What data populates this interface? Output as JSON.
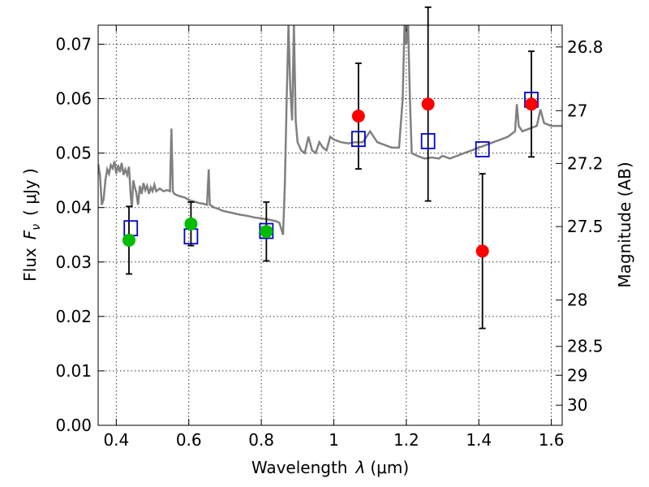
{
  "chart_data": {
    "type": "scatter",
    "xlabel_text": "Wavelength",
    "xlabel_symbol": "λ",
    "xlabel_unit": "(μm)",
    "ylabel_text": "Flux",
    "ylabel_symbol": "F",
    "ylabel_subscript": "ν",
    "ylabel_unit": "( μJy )",
    "y2label": "Magnitude (AB)",
    "xlim": [
      0.35,
      1.63
    ],
    "ylim": [
      0.0,
      0.0735
    ],
    "grid": true,
    "x_ticks": [
      {
        "value": 0.4,
        "label": "0.4"
      },
      {
        "value": 0.6,
        "label": "0.6"
      },
      {
        "value": 0.8,
        "label": "0.8"
      },
      {
        "value": 1.0,
        "label": "1"
      },
      {
        "value": 1.2,
        "label": "1.2"
      },
      {
        "value": 1.4,
        "label": "1.4"
      },
      {
        "value": 1.6,
        "label": "1.6"
      }
    ],
    "y_ticks": [
      {
        "value": 0.0,
        "label": "0.00"
      },
      {
        "value": 0.01,
        "label": "0.01"
      },
      {
        "value": 0.02,
        "label": "0.02"
      },
      {
        "value": 0.03,
        "label": "0.03"
      },
      {
        "value": 0.04,
        "label": "0.04"
      },
      {
        "value": 0.05,
        "label": "0.05"
      },
      {
        "value": 0.06,
        "label": "0.06"
      },
      {
        "value": 0.07,
        "label": "0.07"
      }
    ],
    "y2_ticks": [
      {
        "flux": 0.0695,
        "label": "26.8"
      },
      {
        "flux": 0.0578,
        "label": "27"
      },
      {
        "flux": 0.0481,
        "label": "27.2"
      },
      {
        "flux": 0.0365,
        "label": "27.5"
      },
      {
        "flux": 0.023,
        "label": "28"
      },
      {
        "flux": 0.0145,
        "label": "28.5"
      },
      {
        "flux": 0.0092,
        "label": "29"
      },
      {
        "flux": 0.0037,
        "label": "30"
      }
    ],
    "series": [
      {
        "kind": "spectrum",
        "color": "#808080",
        "points": [
          [
            0.35,
            0.048
          ],
          [
            0.355,
            0.046
          ],
          [
            0.36,
            0.0405
          ],
          [
            0.365,
            0.0415
          ],
          [
            0.37,
            0.045
          ],
          [
            0.375,
            0.047
          ],
          [
            0.38,
            0.0462
          ],
          [
            0.385,
            0.0478
          ],
          [
            0.39,
            0.0472
          ],
          [
            0.395,
            0.0485
          ],
          [
            0.4,
            0.0462
          ],
          [
            0.405,
            0.0478
          ],
          [
            0.41,
            0.0465
          ],
          [
            0.415,
            0.0482
          ],
          [
            0.42,
            0.046
          ],
          [
            0.425,
            0.047
          ],
          [
            0.43,
            0.046
          ],
          [
            0.435,
            0.0475
          ],
          [
            0.44,
            0.042
          ],
          [
            0.443,
            0.04
          ],
          [
            0.447,
            0.045
          ],
          [
            0.45,
            0.044
          ],
          [
            0.455,
            0.0428
          ],
          [
            0.46,
            0.0405
          ],
          [
            0.465,
            0.044
          ],
          [
            0.47,
            0.0425
          ],
          [
            0.475,
            0.0445
          ],
          [
            0.48,
            0.0432
          ],
          [
            0.485,
            0.044
          ],
          [
            0.49,
            0.0425
          ],
          [
            0.495,
            0.0437
          ],
          [
            0.5,
            0.043
          ],
          [
            0.505,
            0.0442
          ],
          [
            0.51,
            0.043
          ],
          [
            0.52,
            0.0435
          ],
          [
            0.53,
            0.043
          ],
          [
            0.54,
            0.0432
          ],
          [
            0.548,
            0.043
          ],
          [
            0.552,
            0.0545
          ],
          [
            0.556,
            0.043
          ],
          [
            0.56,
            0.0425
          ],
          [
            0.57,
            0.0422
          ],
          [
            0.58,
            0.042
          ],
          [
            0.59,
            0.0418
          ],
          [
            0.6,
            0.0414
          ],
          [
            0.61,
            0.0412
          ],
          [
            0.62,
            0.041
          ],
          [
            0.63,
            0.0408
          ],
          [
            0.64,
            0.0407
          ],
          [
            0.65,
            0.0405
          ],
          [
            0.655,
            0.047
          ],
          [
            0.658,
            0.0405
          ],
          [
            0.67,
            0.04
          ],
          [
            0.68,
            0.0398
          ],
          [
            0.69,
            0.0395
          ],
          [
            0.7,
            0.0393
          ],
          [
            0.72,
            0.039
          ],
          [
            0.74,
            0.0387
          ],
          [
            0.76,
            0.0385
          ],
          [
            0.78,
            0.0382
          ],
          [
            0.8,
            0.038
          ],
          [
            0.82,
            0.0378
          ],
          [
            0.84,
            0.0375
          ],
          [
            0.85,
            0.0372
          ],
          [
            0.86,
            0.035
          ],
          [
            0.865,
            0.044
          ],
          [
            0.87,
            0.06
          ],
          [
            0.875,
            0.0735
          ],
          [
            0.88,
            0.062
          ],
          [
            0.885,
            0.056
          ],
          [
            0.89,
            0.0735
          ],
          [
            0.895,
            0.056
          ],
          [
            0.9,
            0.052
          ],
          [
            0.91,
            0.0505
          ],
          [
            0.92,
            0.05
          ],
          [
            0.93,
            0.053
          ],
          [
            0.94,
            0.0505
          ],
          [
            0.95,
            0.05
          ],
          [
            0.96,
            0.052
          ],
          [
            0.97,
            0.051
          ],
          [
            0.98,
            0.0505
          ],
          [
            0.99,
            0.053
          ],
          [
            1.0,
            0.0525
          ],
          [
            1.02,
            0.052
          ],
          [
            1.04,
            0.0518
          ],
          [
            1.06,
            0.052
          ],
          [
            1.08,
            0.052
          ],
          [
            1.09,
            0.053
          ],
          [
            1.1,
            0.054
          ],
          [
            1.11,
            0.053
          ],
          [
            1.12,
            0.052
          ],
          [
            1.14,
            0.0515
          ],
          [
            1.16,
            0.051
          ],
          [
            1.18,
            0.051
          ],
          [
            1.19,
            0.06
          ],
          [
            1.195,
            0.0735
          ],
          [
            1.2,
            0.07
          ],
          [
            1.205,
            0.0735
          ],
          [
            1.21,
            0.06
          ],
          [
            1.215,
            0.05
          ],
          [
            1.23,
            0.0495
          ],
          [
            1.25,
            0.049
          ],
          [
            1.27,
            0.0492
          ],
          [
            1.29,
            0.049
          ],
          [
            1.3,
            0.0495
          ],
          [
            1.32,
            0.049
          ],
          [
            1.34,
            0.0495
          ],
          [
            1.36,
            0.05
          ],
          [
            1.38,
            0.0505
          ],
          [
            1.4,
            0.051
          ],
          [
            1.42,
            0.0515
          ],
          [
            1.44,
            0.052
          ],
          [
            1.46,
            0.0525
          ],
          [
            1.48,
            0.053
          ],
          [
            1.5,
            0.054
          ],
          [
            1.505,
            0.059
          ],
          [
            1.51,
            0.055
          ],
          [
            1.52,
            0.054
          ],
          [
            1.54,
            0.0545
          ],
          [
            1.56,
            0.055
          ],
          [
            1.57,
            0.058
          ],
          [
            1.58,
            0.0555
          ],
          [
            1.6,
            0.055
          ],
          [
            1.63,
            0.055
          ]
        ]
      },
      {
        "kind": "model-bands",
        "marker": "open-square",
        "color": "#0000cc",
        "points": [
          {
            "x": 0.44,
            "y": 0.0362
          },
          {
            "x": 0.606,
            "y": 0.0347
          },
          {
            "x": 0.814,
            "y": 0.0357
          },
          {
            "x": 1.068,
            "y": 0.0526
          },
          {
            "x": 1.26,
            "y": 0.0522
          },
          {
            "x": 1.41,
            "y": 0.0507
          },
          {
            "x": 1.545,
            "y": 0.0598
          }
        ]
      },
      {
        "kind": "optical-detections",
        "marker": "filled-circle",
        "color": "#00bb00",
        "points": [
          {
            "x": 0.435,
            "y": 0.034,
            "err": 0.0062
          },
          {
            "x": 0.606,
            "y": 0.037,
            "err": 0.004
          },
          {
            "x": 0.814,
            "y": 0.0356,
            "err": 0.0054
          }
        ]
      },
      {
        "kind": "nir-detections",
        "marker": "filled-circle",
        "color": "#ff0000",
        "points": [
          {
            "x": 1.068,
            "y": 0.0568,
            "err": 0.0097
          },
          {
            "x": 1.26,
            "y": 0.059,
            "err": 0.0178
          },
          {
            "x": 1.41,
            "y": 0.032,
            "err": 0.0142
          },
          {
            "x": 1.545,
            "y": 0.059,
            "err": 0.0097
          }
        ]
      }
    ]
  }
}
